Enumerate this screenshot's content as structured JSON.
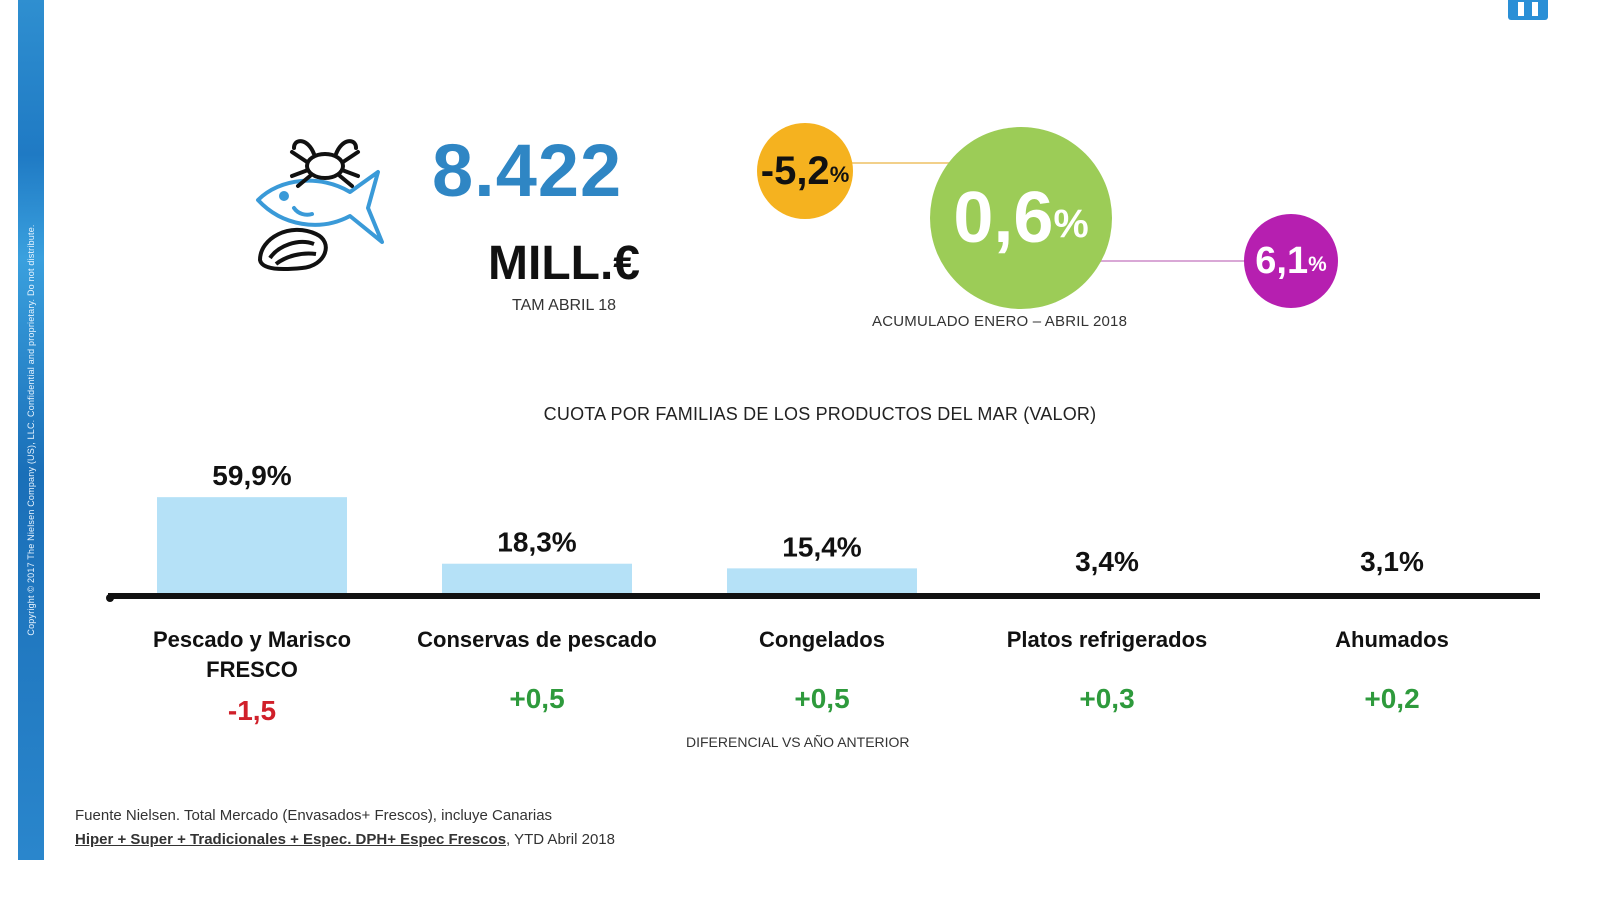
{
  "side_strip": {
    "copyright_text": "Copyright © 2017 The Nielsen Company (US), LLC. Confidential and proprietary. Do not distribute."
  },
  "headline": {
    "value": "8.422",
    "unit": "MILL.€",
    "caption": "TAM ABRIL 18"
  },
  "bubbles": {
    "left": {
      "value": "-5,2",
      "suffix": "%",
      "color": "#f5b21f"
    },
    "center": {
      "value": "0,6",
      "suffix": "%",
      "color": "#9ccc57"
    },
    "right": {
      "value": "6,1",
      "suffix": "%",
      "color": "#b61fb0"
    },
    "caption": "ACUMULADO ENERO – ABRIL 2018",
    "connector_left_color": "#f2d08a",
    "connector_right_color": "#d9a8d6"
  },
  "chart_data": {
    "type": "bar",
    "title": "CUOTA POR FAMILIAS DE LOS PRODUCTOS DEL MAR (VALOR)",
    "categories": [
      "Pescado y Marisco\nFRESCO",
      "Conservas de pescado",
      "Congelados",
      "Platos refrigerados",
      "Ahumados"
    ],
    "values": [
      59.9,
      18.3,
      15.4,
      3.4,
      3.1
    ],
    "value_labels": [
      "59,9%",
      "18,3%",
      "15,4%",
      "3,4%",
      "3,1%"
    ],
    "diffs": [
      "-1,5",
      "+0,5",
      "+0,5",
      "+0,3",
      "+0,2"
    ],
    "diff_caption": "DIFERENCIAL VS AÑO ANTERIOR",
    "bar_color": "#b5e1f7",
    "neg_color": "#d0202a",
    "pos_color": "#2e9a3c",
    "ylim": [
      0,
      60
    ]
  },
  "footnote": {
    "line1": "Fuente Nielsen. Total Mercado (Envasados+ Frescos), incluye Canarias",
    "line2_underlined": "Hiper + Super + Tradicionales + Espec. DPH+ Espec Frescos",
    "line2_rest": ", YTD Abril 2018"
  }
}
